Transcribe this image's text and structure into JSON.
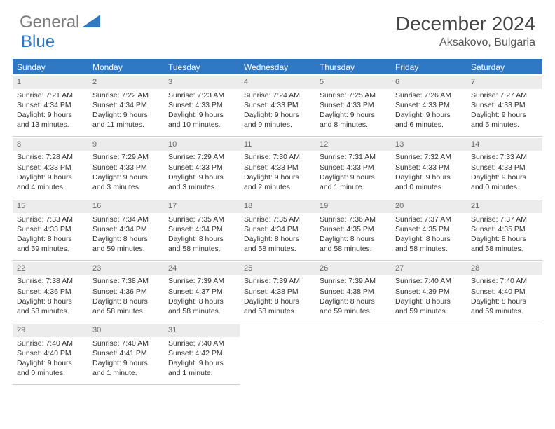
{
  "logo": {
    "text1": "General",
    "text2": "Blue"
  },
  "title": "December 2024",
  "location": "Aksakovo, Bulgaria",
  "colors": {
    "brand": "#2f78c4",
    "header_gray": "#7a7a7a",
    "daynum_bg": "#ececec",
    "border": "#cfcfcf",
    "text": "#333333",
    "bg": "#ffffff"
  },
  "day_labels": [
    "Sunday",
    "Monday",
    "Tuesday",
    "Wednesday",
    "Thursday",
    "Friday",
    "Saturday"
  ],
  "weeks": [
    [
      {
        "n": "1",
        "sr": "Sunrise: 7:21 AM",
        "ss": "Sunset: 4:34 PM",
        "dl": "Daylight: 9 hours and 13 minutes."
      },
      {
        "n": "2",
        "sr": "Sunrise: 7:22 AM",
        "ss": "Sunset: 4:34 PM",
        "dl": "Daylight: 9 hours and 11 minutes."
      },
      {
        "n": "3",
        "sr": "Sunrise: 7:23 AM",
        "ss": "Sunset: 4:33 PM",
        "dl": "Daylight: 9 hours and 10 minutes."
      },
      {
        "n": "4",
        "sr": "Sunrise: 7:24 AM",
        "ss": "Sunset: 4:33 PM",
        "dl": "Daylight: 9 hours and 9 minutes."
      },
      {
        "n": "5",
        "sr": "Sunrise: 7:25 AM",
        "ss": "Sunset: 4:33 PM",
        "dl": "Daylight: 9 hours and 8 minutes."
      },
      {
        "n": "6",
        "sr": "Sunrise: 7:26 AM",
        "ss": "Sunset: 4:33 PM",
        "dl": "Daylight: 9 hours and 6 minutes."
      },
      {
        "n": "7",
        "sr": "Sunrise: 7:27 AM",
        "ss": "Sunset: 4:33 PM",
        "dl": "Daylight: 9 hours and 5 minutes."
      }
    ],
    [
      {
        "n": "8",
        "sr": "Sunrise: 7:28 AM",
        "ss": "Sunset: 4:33 PM",
        "dl": "Daylight: 9 hours and 4 minutes."
      },
      {
        "n": "9",
        "sr": "Sunrise: 7:29 AM",
        "ss": "Sunset: 4:33 PM",
        "dl": "Daylight: 9 hours and 3 minutes."
      },
      {
        "n": "10",
        "sr": "Sunrise: 7:29 AM",
        "ss": "Sunset: 4:33 PM",
        "dl": "Daylight: 9 hours and 3 minutes."
      },
      {
        "n": "11",
        "sr": "Sunrise: 7:30 AM",
        "ss": "Sunset: 4:33 PM",
        "dl": "Daylight: 9 hours and 2 minutes."
      },
      {
        "n": "12",
        "sr": "Sunrise: 7:31 AM",
        "ss": "Sunset: 4:33 PM",
        "dl": "Daylight: 9 hours and 1 minute."
      },
      {
        "n": "13",
        "sr": "Sunrise: 7:32 AM",
        "ss": "Sunset: 4:33 PM",
        "dl": "Daylight: 9 hours and 0 minutes."
      },
      {
        "n": "14",
        "sr": "Sunrise: 7:33 AM",
        "ss": "Sunset: 4:33 PM",
        "dl": "Daylight: 9 hours and 0 minutes."
      }
    ],
    [
      {
        "n": "15",
        "sr": "Sunrise: 7:33 AM",
        "ss": "Sunset: 4:33 PM",
        "dl": "Daylight: 8 hours and 59 minutes."
      },
      {
        "n": "16",
        "sr": "Sunrise: 7:34 AM",
        "ss": "Sunset: 4:34 PM",
        "dl": "Daylight: 8 hours and 59 minutes."
      },
      {
        "n": "17",
        "sr": "Sunrise: 7:35 AM",
        "ss": "Sunset: 4:34 PM",
        "dl": "Daylight: 8 hours and 58 minutes."
      },
      {
        "n": "18",
        "sr": "Sunrise: 7:35 AM",
        "ss": "Sunset: 4:34 PM",
        "dl": "Daylight: 8 hours and 58 minutes."
      },
      {
        "n": "19",
        "sr": "Sunrise: 7:36 AM",
        "ss": "Sunset: 4:35 PM",
        "dl": "Daylight: 8 hours and 58 minutes."
      },
      {
        "n": "20",
        "sr": "Sunrise: 7:37 AM",
        "ss": "Sunset: 4:35 PM",
        "dl": "Daylight: 8 hours and 58 minutes."
      },
      {
        "n": "21",
        "sr": "Sunrise: 7:37 AM",
        "ss": "Sunset: 4:35 PM",
        "dl": "Daylight: 8 hours and 58 minutes."
      }
    ],
    [
      {
        "n": "22",
        "sr": "Sunrise: 7:38 AM",
        "ss": "Sunset: 4:36 PM",
        "dl": "Daylight: 8 hours and 58 minutes."
      },
      {
        "n": "23",
        "sr": "Sunrise: 7:38 AM",
        "ss": "Sunset: 4:36 PM",
        "dl": "Daylight: 8 hours and 58 minutes."
      },
      {
        "n": "24",
        "sr": "Sunrise: 7:39 AM",
        "ss": "Sunset: 4:37 PM",
        "dl": "Daylight: 8 hours and 58 minutes."
      },
      {
        "n": "25",
        "sr": "Sunrise: 7:39 AM",
        "ss": "Sunset: 4:38 PM",
        "dl": "Daylight: 8 hours and 58 minutes."
      },
      {
        "n": "26",
        "sr": "Sunrise: 7:39 AM",
        "ss": "Sunset: 4:38 PM",
        "dl": "Daylight: 8 hours and 59 minutes."
      },
      {
        "n": "27",
        "sr": "Sunrise: 7:40 AM",
        "ss": "Sunset: 4:39 PM",
        "dl": "Daylight: 8 hours and 59 minutes."
      },
      {
        "n": "28",
        "sr": "Sunrise: 7:40 AM",
        "ss": "Sunset: 4:40 PM",
        "dl": "Daylight: 8 hours and 59 minutes."
      }
    ],
    [
      {
        "n": "29",
        "sr": "Sunrise: 7:40 AM",
        "ss": "Sunset: 4:40 PM",
        "dl": "Daylight: 9 hours and 0 minutes."
      },
      {
        "n": "30",
        "sr": "Sunrise: 7:40 AM",
        "ss": "Sunset: 4:41 PM",
        "dl": "Daylight: 9 hours and 1 minute."
      },
      {
        "n": "31",
        "sr": "Sunrise: 7:40 AM",
        "ss": "Sunset: 4:42 PM",
        "dl": "Daylight: 9 hours and 1 minute."
      },
      null,
      null,
      null,
      null
    ]
  ]
}
